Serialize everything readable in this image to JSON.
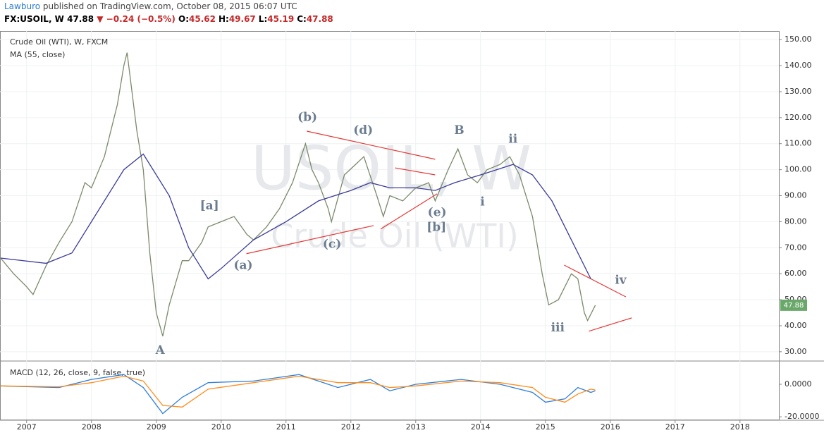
{
  "header": {
    "author": "Lawburo",
    "published": "published on TradingView.com, October 08, 2015 06:07 UTC",
    "symbol": "FX:USOIL, W",
    "last": "47.88",
    "change": "▼ −0.24 (−0.5%)",
    "ohlc": [
      {
        "label": "O:",
        "value": "45.62"
      },
      {
        "label": "H:",
        "value": "49.67"
      },
      {
        "label": "L:",
        "value": "45.19"
      },
      {
        "label": "C:",
        "value": "47.88"
      }
    ]
  },
  "chart_data": [
    {
      "type": "line",
      "title": "Crude Oil (WTI), W, FXCM",
      "watermark": "USOIL, W",
      "watermark_sub": "Crude Oil (WTI)",
      "last_label": "47.88",
      "last_color": "#6aa86a",
      "xlim": [
        2006.59,
        2018.6
      ],
      "xticks": [
        2007,
        2008,
        2009,
        2010,
        2011,
        2012,
        2013,
        2014,
        2015,
        2016,
        2017,
        2018
      ],
      "ylim": [
        26.7,
        153.3
      ],
      "yticks": [
        {
          "value": 30,
          "label": "30.00"
        },
        {
          "value": 40,
          "label": "40.00"
        },
        {
          "value": 50,
          "label": "50.00"
        },
        {
          "value": 60,
          "label": "60.00"
        },
        {
          "value": 70,
          "label": "70.00"
        },
        {
          "value": 80,
          "label": "80.00"
        },
        {
          "value": 90,
          "label": "90.00"
        },
        {
          "value": 100,
          "label": "100.00"
        },
        {
          "value": 110,
          "label": "110.00"
        },
        {
          "value": 120,
          "label": "120.00"
        },
        {
          "value": 130,
          "label": "130.00"
        },
        {
          "value": 140,
          "label": "140.00"
        },
        {
          "value": 150,
          "label": "150.00"
        }
      ],
      "grid": true,
      "series": [
        {
          "color": "#7a8a6a",
          "x": [
            2006.6,
            2006.8,
            2007.0,
            2007.1,
            2007.3,
            2007.5,
            2007.7,
            2007.9,
            2008.0,
            2008.2,
            2008.4,
            2008.5,
            2008.55,
            2008.7,
            2008.8,
            2008.9,
            2009.0,
            2009.1,
            2009.2,
            2009.4,
            2009.5,
            2009.7,
            2009.8,
            2010.0,
            2010.2,
            2010.4,
            2010.5,
            2010.7,
            2010.9,
            2011.1,
            2011.3,
            2011.4,
            2011.5,
            2011.65,
            2011.7,
            2011.9,
            2012.2,
            2012.4,
            2012.5,
            2012.6,
            2012.8,
            2013.0,
            2013.2,
            2013.3,
            2013.5,
            2013.65,
            2013.8,
            2013.95,
            2014.1,
            2014.3,
            2014.45,
            2014.6,
            2014.8,
            2014.95,
            2015.05,
            2015.2,
            2015.4,
            2015.5,
            2015.6,
            2015.65,
            2015.77
          ],
          "values": [
            66,
            60,
            55,
            52,
            63,
            72,
            80,
            95,
            93,
            105,
            125,
            140,
            145,
            115,
            100,
            68,
            45,
            36,
            48,
            65,
            65,
            72,
            78,
            80,
            82,
            75,
            73,
            78,
            85,
            95,
            110,
            100,
            95,
            85,
            80,
            98,
            105,
            90,
            82,
            90,
            88,
            93,
            95,
            88,
            100,
            108,
            98,
            95,
            100,
            102,
            105,
            98,
            82,
            60,
            48,
            50,
            60,
            58,
            45,
            42,
            47.88
          ]
        },
        {
          "name": "MA (55, close)",
          "color": "#3c3c9a",
          "x": [
            2006.6,
            2007.3,
            2007.7,
            2008.0,
            2008.5,
            2008.8,
            2009.2,
            2009.5,
            2009.8,
            2010.0,
            2010.5,
            2011.0,
            2011.5,
            2012.0,
            2012.3,
            2012.6,
            2013.0,
            2013.3,
            2013.6,
            2014.0,
            2014.5,
            2014.8,
            2015.1,
            2015.4,
            2015.7
          ],
          "values": [
            66,
            64,
            68,
            80,
            100,
            106,
            90,
            70,
            58,
            62,
            73,
            80,
            88,
            92,
            95,
            93,
            93,
            92,
            95,
            98,
            102,
            98,
            88,
            73,
            58
          ]
        }
      ],
      "annotations": [
        {
          "text": "(b)",
          "x": 2011.33,
          "y": 120
        },
        {
          "text": "(d)",
          "x": 2012.19,
          "y": 115
        },
        {
          "text": "B",
          "x": 2013.67,
          "y": 115
        },
        {
          "text": "ii",
          "x": 2014.5,
          "y": 111.6
        },
        {
          "text": "[a]",
          "x": 2009.82,
          "y": 86
        },
        {
          "text": "i",
          "x": 2014.03,
          "y": 87.4
        },
        {
          "text": "(e)",
          "x": 2013.33,
          "y": 83.4
        },
        {
          "text": "[b]",
          "x": 2013.32,
          "y": 77.7
        },
        {
          "text": "(c)",
          "x": 2011.71,
          "y": 71.2
        },
        {
          "text": "(a)",
          "x": 2010.34,
          "y": 63
        },
        {
          "text": "A",
          "x": 2009.06,
          "y": 30.3
        },
        {
          "text": "iii",
          "x": 2015.19,
          "y": 39
        },
        {
          "text": "iv",
          "x": 2016.16,
          "y": 57.4
        }
      ],
      "trendlines": {
        "color": "#e53935",
        "lines": [
          {
            "x": [
              2010.39,
              2012.35
            ],
            "y": [
              67.7,
              78.5
            ]
          },
          {
            "x": [
              2011.32,
              2013.3
            ],
            "y": [
              114.8,
              104
            ]
          },
          {
            "x": [
              2012.46,
              2013.33
            ],
            "y": [
              77.2,
              90.7
            ]
          },
          {
            "x": [
              2012.68,
              2013.3
            ],
            "y": [
              100.7,
              98
            ]
          },
          {
            "x": [
              2015.29,
              2016.24
            ],
            "y": [
              63.3,
              51.1
            ]
          },
          {
            "x": [
              2015.67,
              2016.33
            ],
            "y": [
              37.9,
              43
            ]
          }
        ]
      }
    },
    {
      "type": "line",
      "title": "MACD (12, 26, close, 9, false, true)",
      "xlim": [
        2006.59,
        2018.6
      ],
      "ylim": [
        -21.7,
        13.9
      ],
      "yticks": [
        {
          "value": 0,
          "label": "0.0000"
        },
        {
          "value": -20,
          "label": "-20.0000"
        }
      ],
      "series": [
        {
          "color": "#2f7ed8",
          "x": [
            2006.6,
            2007.5,
            2008.0,
            2008.5,
            2008.8,
            2009.1,
            2009.4,
            2009.8,
            2010.5,
            2011.2,
            2011.8,
            2012.3,
            2012.6,
            2013.0,
            2013.7,
            2014.3,
            2014.8,
            2015.0,
            2015.3,
            2015.5,
            2015.7,
            2015.77
          ],
          "values": [
            -1,
            -2,
            3,
            6,
            -2,
            -18,
            -8,
            1,
            2,
            6,
            -2,
            3,
            -4,
            0,
            3,
            0,
            -5,
            -11,
            -9,
            -2,
            -5,
            -4
          ]
        },
        {
          "color": "#ff8c1a",
          "x": [
            2006.6,
            2007.5,
            2008.0,
            2008.5,
            2008.8,
            2009.1,
            2009.4,
            2009.8,
            2010.5,
            2011.2,
            2011.8,
            2012.3,
            2012.6,
            2013.0,
            2013.7,
            2014.3,
            2014.8,
            2015.0,
            2015.3,
            2015.5,
            2015.7,
            2015.77
          ],
          "values": [
            -1,
            -1.5,
            1,
            5,
            2,
            -13,
            -14,
            -3,
            1,
            5,
            1,
            1,
            -2,
            -1,
            2,
            1,
            -2,
            -8,
            -11,
            -6,
            -3,
            -3.5
          ]
        }
      ]
    }
  ]
}
